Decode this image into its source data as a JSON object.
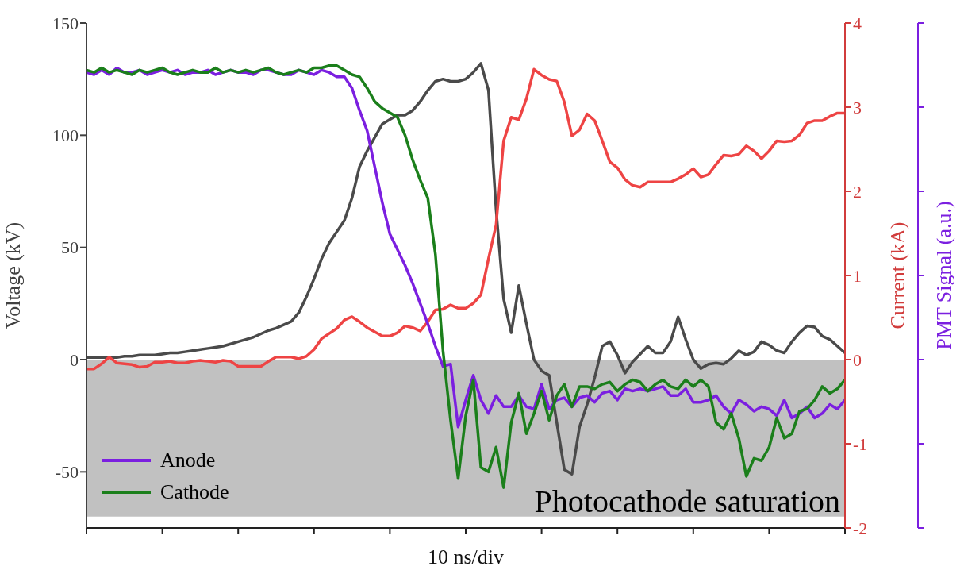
{
  "chart_data": {
    "type": "line",
    "xlabel": "10 ns/div",
    "ylabel": "Voltage (kV)",
    "y2label": "Current (kA)",
    "y3label": "PMT Signal (a.u.)",
    "categories": [
      null,
      null,
      null,
      null,
      null,
      null,
      null,
      null,
      null,
      null,
      null,
      null,
      null,
      null,
      null,
      null,
      null,
      null,
      null,
      null,
      null,
      null,
      null,
      null,
      null,
      null,
      null,
      null,
      null,
      null,
      null,
      null,
      null,
      null,
      null,
      null,
      null,
      null,
      null,
      null,
      null,
      null,
      null,
      null,
      null,
      null,
      null,
      null,
      null,
      null,
      null,
      null,
      null,
      null,
      null,
      null,
      null,
      null,
      null,
      null,
      null,
      null,
      null,
      null,
      null,
      null,
      null,
      null,
      null,
      null,
      null,
      null,
      null,
      null,
      null,
      null,
      null,
      null,
      null,
      null,
      null,
      null,
      null,
      null,
      null,
      null,
      null,
      null,
      null,
      null,
      null,
      null,
      null,
      null,
      null,
      null,
      null,
      null,
      null,
      null,
      null
    ],
    "ylim": [
      -75,
      150
    ],
    "yticks": [
      -50,
      0,
      50,
      100,
      150
    ],
    "y2lim": [
      -2,
      4
    ],
    "y2ticks": [
      -2,
      -1,
      0,
      1,
      2,
      3,
      4
    ],
    "legend": "bottom left",
    "grid": false,
    "marker": "none",
    "line_style": "solid",
    "bands": [
      {
        "axis": "y",
        "from": -70,
        "to": 0,
        "label": "Photocathode saturation",
        "color": "#bebebe"
      }
    ],
    "series": [
      {
        "color": "#4a4a4a",
        "values": [
          1,
          1,
          1,
          1,
          1,
          1.5,
          1.5,
          2,
          2,
          2,
          2.5,
          3,
          3,
          3.5,
          4,
          4.5,
          5,
          5.5,
          6,
          7,
          8,
          9,
          10,
          11.5,
          13,
          14,
          15.5,
          17,
          21,
          28,
          36,
          45,
          52,
          57,
          62,
          72,
          86,
          93,
          99,
          105,
          107,
          109,
          109,
          111,
          115,
          120,
          124,
          125,
          124,
          124,
          125,
          128,
          132,
          120,
          67,
          27,
          12,
          33,
          16,
          0,
          -5,
          -7,
          -28,
          -49,
          -51,
          -30,
          -20,
          -8,
          6,
          8,
          2,
          -6,
          -1,
          2.5,
          6,
          3,
          3,
          8,
          19,
          9,
          0,
          -4,
          -2,
          -1.5,
          -2,
          0.5,
          4,
          2,
          3.5,
          8,
          6.5,
          4,
          3,
          8,
          12,
          15,
          14.5,
          10.5,
          9,
          6,
          3
        ]
      },
      {
        "color": "#ee4444",
        "axis": "y2",
        "values": [
          -0.11,
          -0.11,
          -0.05,
          0.03,
          -0.04,
          -0.05,
          -0.06,
          -0.09,
          -0.08,
          -0.03,
          -0.03,
          -0.02,
          -0.04,
          -0.04,
          -0.02,
          -0.01,
          -0.02,
          -0.03,
          -0.01,
          -0.02,
          -0.08,
          -0.08,
          -0.08,
          -0.08,
          -0.02,
          0.03,
          0.03,
          0.03,
          0.01,
          0.04,
          0.12,
          0.25,
          0.31,
          0.37,
          0.47,
          0.51,
          0.45,
          0.38,
          0.33,
          0.28,
          0.28,
          0.32,
          0.4,
          0.38,
          0.34,
          0.45,
          0.59,
          0.6,
          0.65,
          0.61,
          0.61,
          0.67,
          0.77,
          1.2,
          1.6,
          2.6,
          2.88,
          2.85,
          3.1,
          3.45,
          3.38,
          3.33,
          3.31,
          3.06,
          2.66,
          2.73,
          2.92,
          2.84,
          2.6,
          2.35,
          2.28,
          2.14,
          2.07,
          2.05,
          2.11,
          2.11,
          2.11,
          2.11,
          2.15,
          2.2,
          2.27,
          2.17,
          2.2,
          2.32,
          2.43,
          2.42,
          2.44,
          2.54,
          2.48,
          2.39,
          2.48,
          2.6,
          2.59,
          2.6,
          2.67,
          2.81,
          2.84,
          2.84,
          2.89,
          2.93,
          2.93
        ]
      },
      {
        "name": "Anode",
        "color": "#7b1fe0",
        "values": [
          128,
          127,
          129,
          127,
          130,
          128,
          128,
          129,
          127,
          128,
          129,
          128,
          129,
          127,
          128,
          128,
          129,
          127,
          128,
          129,
          128,
          128,
          127,
          129,
          129,
          128,
          127,
          127,
          129,
          128,
          127,
          129,
          128,
          126,
          126,
          121,
          111,
          102,
          86,
          70,
          56,
          49,
          42,
          34,
          25,
          16,
          6,
          -3,
          -2,
          -30,
          -18,
          -7,
          -18,
          -24,
          -16,
          -21,
          -21,
          -16,
          -21,
          -22,
          -11,
          -22,
          -18,
          -17,
          -21,
          -17,
          -16,
          -19,
          -15,
          -14,
          -18,
          -13,
          -14,
          -13,
          -14,
          -13,
          -12,
          -16,
          -16,
          -13,
          -19,
          -19,
          -18,
          -16,
          -21,
          -24,
          -18,
          -20,
          -23,
          -21,
          -22,
          -25,
          -18,
          -26,
          -24,
          -21,
          -26,
          -24,
          -20,
          -22,
          -18
        ]
      },
      {
        "name": "Cathode",
        "color": "#1b7f1b",
        "values": [
          129,
          128,
          130,
          128,
          129,
          128,
          127,
          129,
          128,
          129,
          130,
          128,
          127,
          128,
          129,
          128,
          128,
          130,
          128,
          129,
          128,
          129,
          128,
          129,
          130,
          128,
          127,
          128,
          129,
          128,
          130,
          130,
          131,
          131,
          129,
          127,
          126,
          121,
          115,
          112,
          110,
          108,
          100,
          89,
          80,
          72,
          47,
          4,
          -27,
          -53,
          -25,
          -9,
          -48,
          -50,
          -39,
          -57,
          -28,
          -15,
          -33,
          -24,
          -14,
          -27,
          -16,
          -11,
          -21,
          -12,
          -12,
          -13,
          -11,
          -10,
          -14,
          -11,
          -9,
          -10,
          -14,
          -11,
          -9,
          -12,
          -13,
          -9,
          -12,
          -9,
          -12,
          -28,
          -31,
          -24,
          -35,
          -52,
          -44,
          -45,
          -39,
          -26,
          -35,
          -33,
          -23,
          -22,
          -18,
          -12,
          -15,
          -13,
          -9
        ]
      }
    ]
  }
}
